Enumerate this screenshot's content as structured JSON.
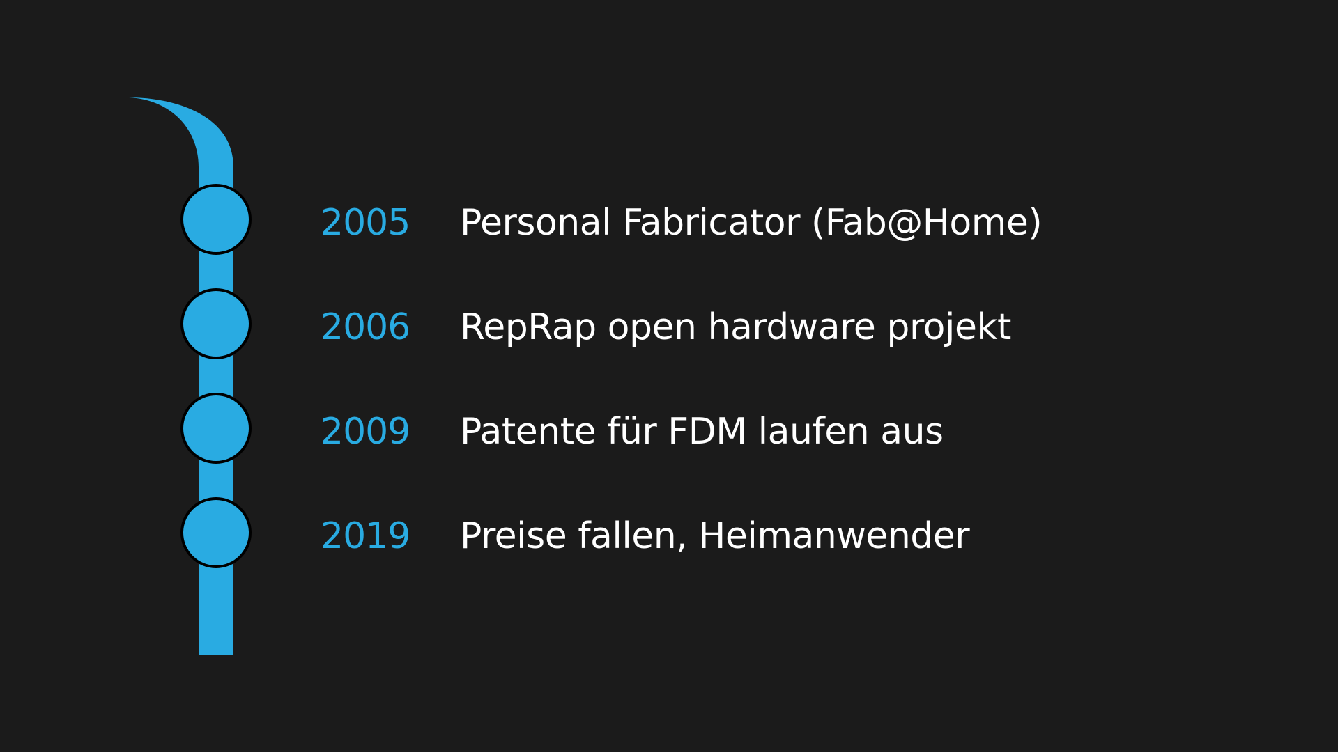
{
  "colors": {
    "background": "#1b1b1b",
    "accent": "#29abe2",
    "text": "#ffffff",
    "node_outline": "#000000"
  },
  "timeline": {
    "events": [
      {
        "year": "2005",
        "label": "Personal Fabricator (Fab@Home)"
      },
      {
        "year": "2006",
        "label": "RepRap open hardware projekt"
      },
      {
        "year": "2009",
        "label": "Patente für FDM laufen aus"
      },
      {
        "year": "2019",
        "label": "Preise fallen, Heimanwender"
      }
    ]
  }
}
